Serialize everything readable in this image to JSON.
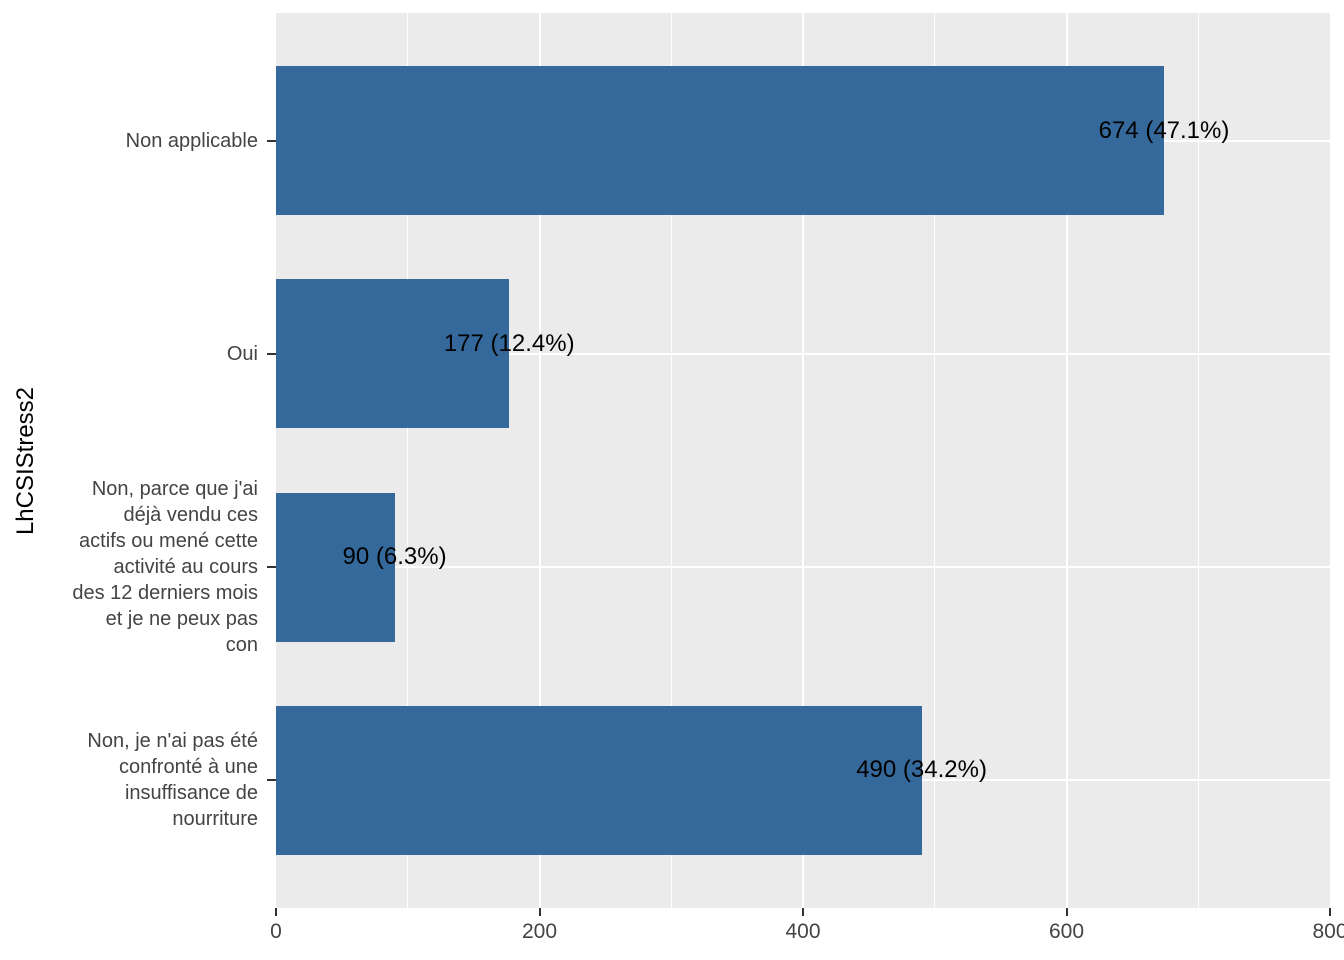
{
  "chart_data": {
    "type": "bar",
    "orientation": "horizontal",
    "title": "",
    "xlabel": "",
    "ylabel": "LhCSIStress2",
    "xlim": [
      0,
      800
    ],
    "x_major_ticks": [
      "0",
      "200",
      "400",
      "600",
      "800"
    ],
    "x_major_tick_values": [
      0,
      200,
      400,
      600,
      800
    ],
    "x_minor_tick_values": [
      100,
      300,
      500,
      700
    ],
    "grid": true,
    "legend": null,
    "categories": [
      {
        "label": "Non applicable",
        "label_lines": [
          "Non applicable"
        ],
        "value": 674,
        "pct": 47.1,
        "bar_label": "674 (47.1%)"
      },
      {
        "label": "Oui",
        "label_lines": [
          "Oui"
        ],
        "value": 177,
        "pct": 12.4,
        "bar_label": "177 (12.4%)"
      },
      {
        "label": "Non, parce que j'ai déjà vendu ces actifs ou mené cette activité au cours des 12 derniers mois et je ne peux pas con",
        "label_lines": [
          "Non, parce que j'ai",
          "déjà vendu ces",
          "actifs ou mené cette",
          "activité au cours",
          "des 12 derniers mois",
          "et je ne peux pas",
          "con"
        ],
        "value": 90,
        "pct": 6.3,
        "bar_label": "90 (6.3%)"
      },
      {
        "label": "Non, je n'ai pas été confronté à une insuffisance de nourriture",
        "label_lines": [
          "Non, je n'ai pas été",
          "confronté à une",
          "insuffisance de",
          "nourriture"
        ],
        "value": 490,
        "pct": 34.2,
        "bar_label": "490 (34.2%)"
      }
    ],
    "colors": {
      "bar_fill": "#36699B",
      "panel_background": "#EBEBEB",
      "gridline": "#FFFFFF",
      "axis_text": "#444444",
      "tick_mark": "#333333",
      "bar_label_text": "#000000",
      "axis_title_text": "#000000",
      "figure_background": "#FFFFFF"
    }
  }
}
